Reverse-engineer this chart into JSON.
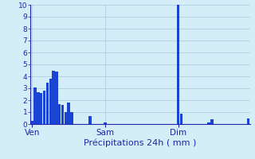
{
  "bar_values": [
    0.3,
    3.1,
    2.7,
    2.6,
    2.8,
    3.5,
    3.8,
    4.5,
    4.4,
    1.7,
    1.6,
    1.0,
    1.8,
    1.0,
    0.0,
    0.0,
    0.0,
    0.0,
    0.0,
    0.7,
    0.0,
    0.0,
    0.0,
    0.0,
    0.15,
    0.0,
    0.0,
    0.0,
    0.0,
    0.0,
    0.0,
    0.0,
    0.0,
    0.0,
    0.0,
    0.0,
    0.0,
    0.0,
    0.0,
    0.0,
    0.0,
    0.0,
    0.0,
    0.0,
    0.0,
    0.0,
    0.0,
    0.0,
    10.0,
    0.9,
    0.0,
    0.0,
    0.0,
    0.0,
    0.0,
    0.0,
    0.0,
    0.0,
    0.15,
    0.4,
    0.0,
    0.0,
    0.0,
    0.0,
    0.0,
    0.0,
    0.0,
    0.0,
    0.0,
    0.0,
    0.0,
    0.5
  ],
  "bar_color": "#1a44d4",
  "bg_color": "#d4eef8",
  "grid_color": "#a8c8dc",
  "axis_line_color": "#2222aa",
  "xlabel": "Précipitations 24h ( mm )",
  "xlabel_color": "#2222aa",
  "tick_label_color": "#2222aa",
  "day_labels": [
    "Ven",
    "Sam",
    "Dim"
  ],
  "day_positions": [
    0,
    24,
    48
  ],
  "ylim": [
    0,
    10
  ],
  "yticks": [
    0,
    1,
    2,
    3,
    4,
    5,
    6,
    7,
    8,
    9,
    10
  ],
  "n_bars": 72,
  "figsize": [
    3.2,
    2.0
  ],
  "dpi": 100
}
